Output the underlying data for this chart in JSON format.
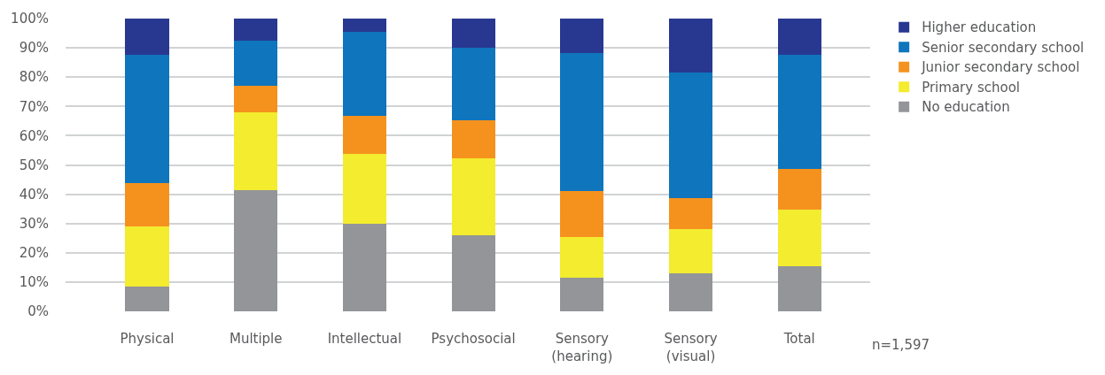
{
  "chart_data": {
    "type": "bar",
    "stacked": true,
    "categories": [
      "Physical",
      "Multiple",
      "Intellectual",
      "Psychosocial",
      "Sensory\n(hearing)",
      "Sensory\n(visual)",
      "Total"
    ],
    "series": [
      {
        "name": "No education",
        "color": "#939598",
        "values": [
          8.6,
          41.4,
          29.8,
          25.9,
          11.6,
          13.1,
          15.5
        ]
      },
      {
        "name": "Primary school",
        "color": "#f3ec2f",
        "values": [
          20.3,
          26.5,
          24.1,
          26.5,
          13.7,
          14.9,
          19.3
        ]
      },
      {
        "name": "Junior secondary school",
        "color": "#f5921e",
        "values": [
          14.9,
          9.2,
          12.8,
          12.8,
          15.8,
          10.7,
          13.7
        ]
      },
      {
        "name": "Senior secondary school",
        "color": "#0f75bc",
        "values": [
          43.7,
          15.2,
          28.8,
          24.7,
          47.0,
          42.8,
          39.0
        ]
      },
      {
        "name": "Higher education",
        "color": "#283891",
        "values": [
          12.5,
          7.7,
          4.5,
          10.1,
          11.9,
          18.5,
          12.5
        ]
      }
    ],
    "ylim": [
      0,
      100
    ],
    "yticks": [
      {
        "value": 0,
        "label": "0%"
      },
      {
        "value": 10,
        "label": "10%"
      },
      {
        "value": 20,
        "label": "20%"
      },
      {
        "value": 30,
        "label": "30%"
      },
      {
        "value": 40,
        "label": "40%"
      },
      {
        "value": 50,
        "label": "50%"
      },
      {
        "value": 60,
        "label": "60%"
      },
      {
        "value": 70,
        "label": "70%"
      },
      {
        "value": 80,
        "label": "80%"
      },
      {
        "value": 90,
        "label": "90%"
      },
      {
        "value": 100,
        "label": "100%"
      }
    ],
    "grid": "y",
    "legend": "right",
    "annotations": [
      "n=1,597"
    ]
  }
}
